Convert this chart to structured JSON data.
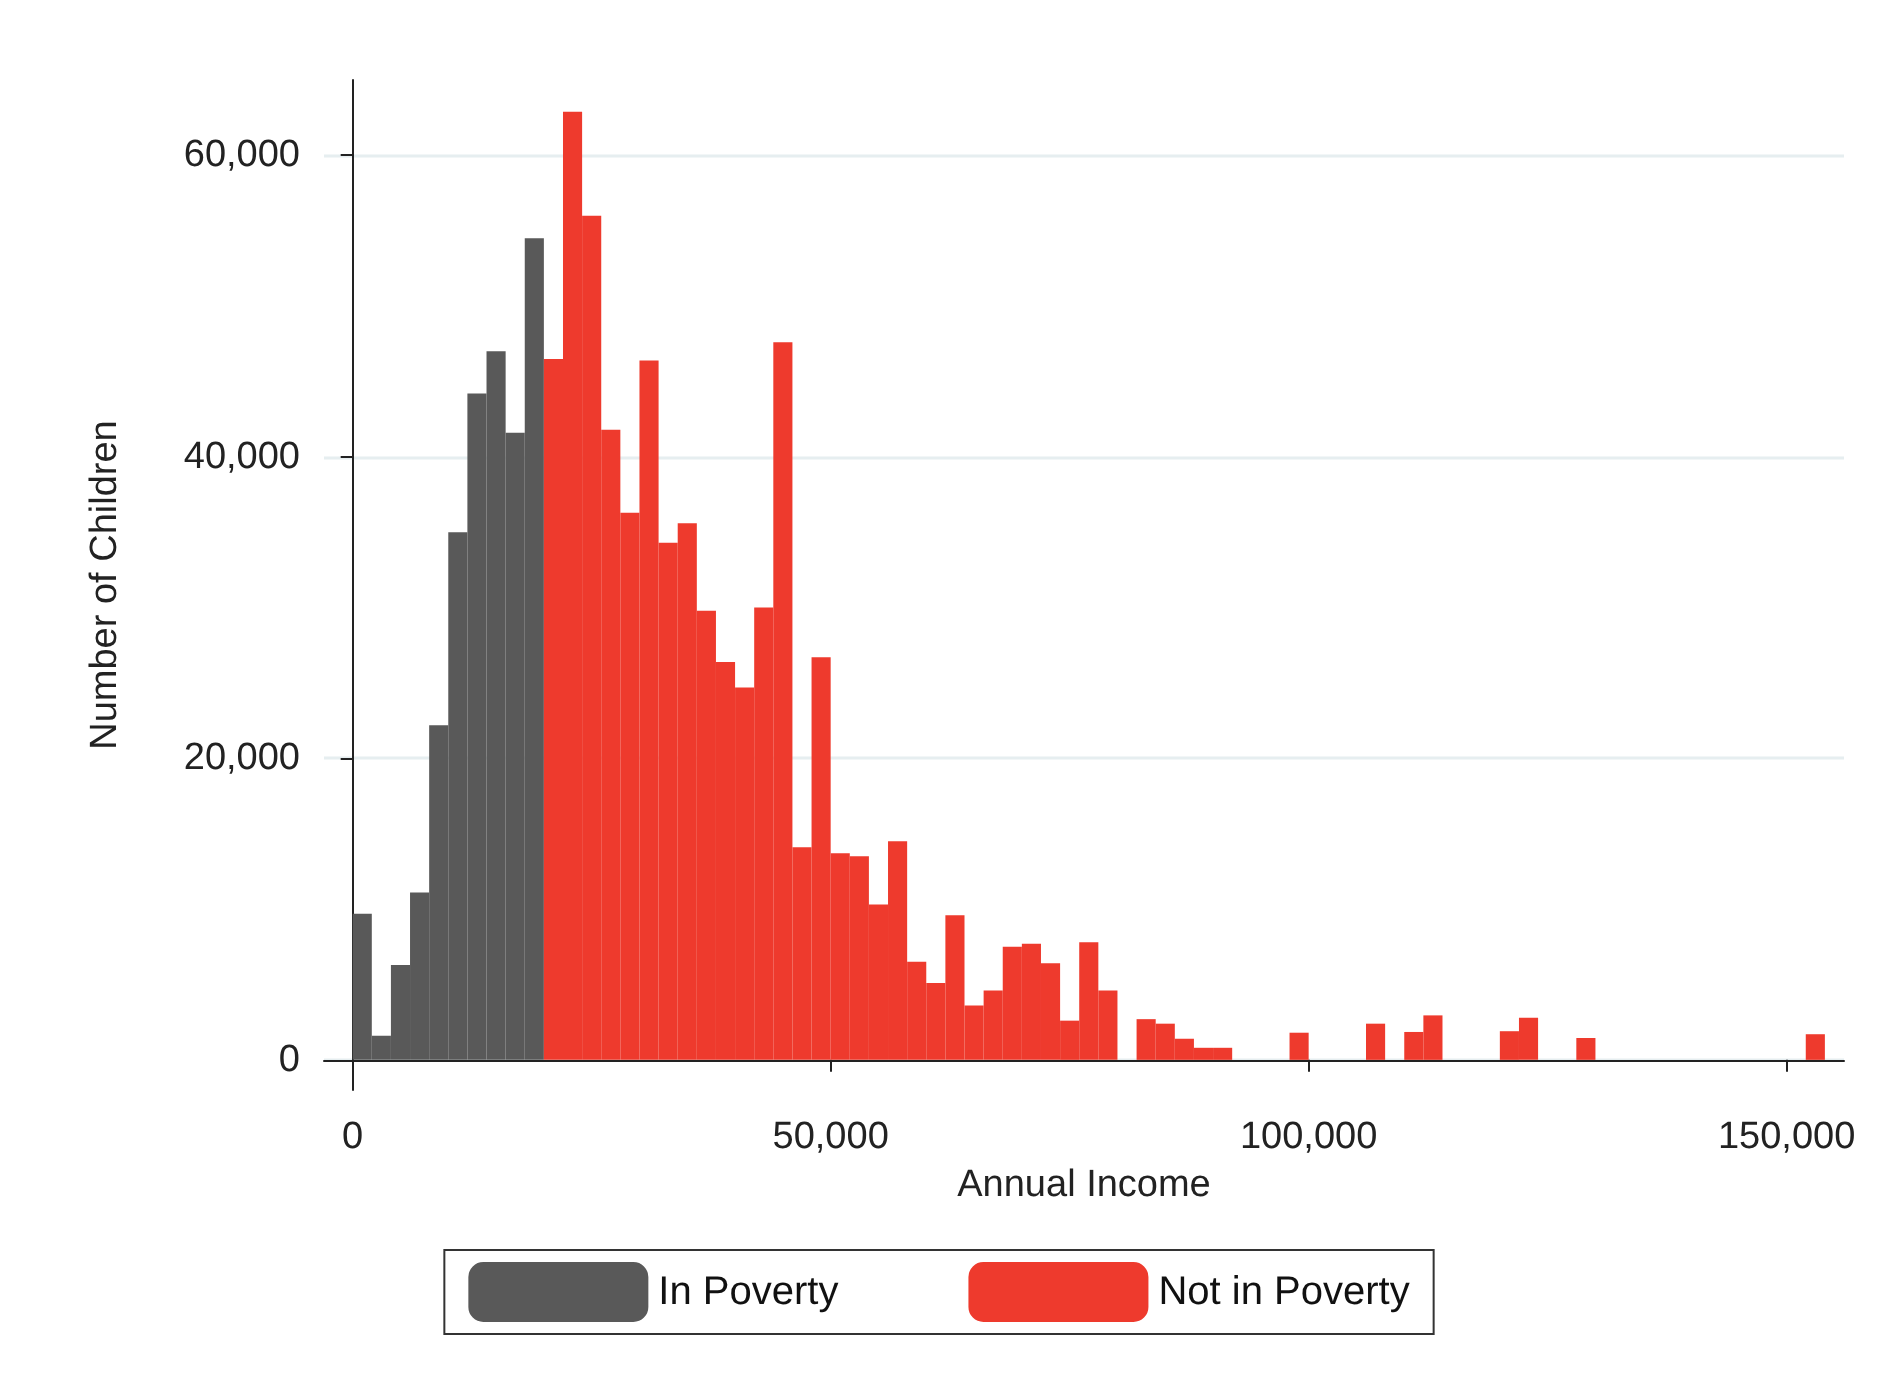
{
  "chart_data": {
    "type": "histogram",
    "xlabel": "Annual Income",
    "ylabel": "Number of Children",
    "bins": [
      0,
      2000,
      4000,
      6000,
      8000,
      10000,
      12000,
      14000,
      16000,
      18000,
      20000,
      22000,
      24000,
      26000,
      28000,
      30000,
      32000,
      34000,
      36000,
      38000,
      40000,
      42000,
      44000,
      46000,
      48000,
      50000,
      52000,
      54000,
      56000,
      58000,
      60000,
      62000,
      64000,
      66000,
      68000,
      70000,
      72000,
      74000,
      76000,
      78000,
      80000,
      82000,
      84000,
      86000,
      88000,
      90000,
      92000,
      94000,
      96000,
      98000,
      100000,
      102000,
      104000,
      106000,
      108000,
      110000,
      112000,
      114000,
      116000,
      118000,
      120000,
      122000,
      124000,
      126000,
      128000,
      130000,
      132000,
      134000,
      136000,
      138000,
      140000,
      142000,
      144000,
      146000,
      148000,
      150000,
      152000,
      154000
    ],
    "series": [
      {
        "name": "In Poverty",
        "color": "#595959",
        "values": [
          9700,
          1600,
          6300,
          11100,
          22200,
          35000,
          44200,
          47000,
          41600,
          54500,
          null,
          null,
          null,
          null,
          null,
          null,
          null,
          null,
          null,
          null,
          null,
          null,
          null,
          null,
          null,
          null,
          null,
          null,
          null,
          null,
          null,
          null,
          null,
          null,
          null,
          null,
          null,
          null,
          null,
          null,
          null,
          null,
          null,
          null,
          null,
          null,
          null,
          null,
          null,
          null,
          null,
          null,
          null,
          null,
          null,
          null,
          null,
          null,
          null,
          null,
          null,
          null,
          null,
          null,
          null,
          null,
          null,
          null,
          null,
          null,
          null,
          null,
          null,
          null,
          null,
          null,
          null
        ]
      },
      {
        "name": "Not in Poverty",
        "color": "#ee3a2d",
        "values": [
          null,
          null,
          null,
          null,
          null,
          null,
          null,
          null,
          null,
          null,
          46500,
          62900,
          56000,
          41800,
          36300,
          46400,
          34300,
          35600,
          29800,
          26400,
          24700,
          30000,
          47600,
          14100,
          26700,
          13700,
          13500,
          10300,
          14500,
          6500,
          5100,
          9600,
          3600,
          4600,
          7500,
          7700,
          6400,
          2600,
          7800,
          4600,
          0,
          2700,
          2400,
          1400,
          800,
          800,
          0,
          0,
          0,
          1800,
          0,
          0,
          0,
          2400,
          0,
          1850,
          2950,
          0,
          0,
          0,
          1900,
          2800,
          0,
          0,
          1450,
          0,
          0,
          0,
          0,
          0,
          0,
          0,
          0,
          0,
          0,
          0,
          1700
        ]
      }
    ],
    "xlim": [
      -3000,
      156000
    ],
    "xticks": [
      {
        "value": 0,
        "label": "0"
      },
      {
        "value": 50000,
        "label": "50,000"
      },
      {
        "value": 100000,
        "label": "100,000"
      },
      {
        "value": 150000,
        "label": "150,000"
      }
    ],
    "ylim": [
      -2000,
      65000
    ],
    "yticks": [
      {
        "value": 0,
        "label": "0"
      },
      {
        "value": 20000,
        "label": "20,000"
      },
      {
        "value": 40000,
        "label": "40,000"
      },
      {
        "value": 60000,
        "label": "60,000"
      }
    ],
    "grid": "y",
    "legend": "bottom"
  }
}
